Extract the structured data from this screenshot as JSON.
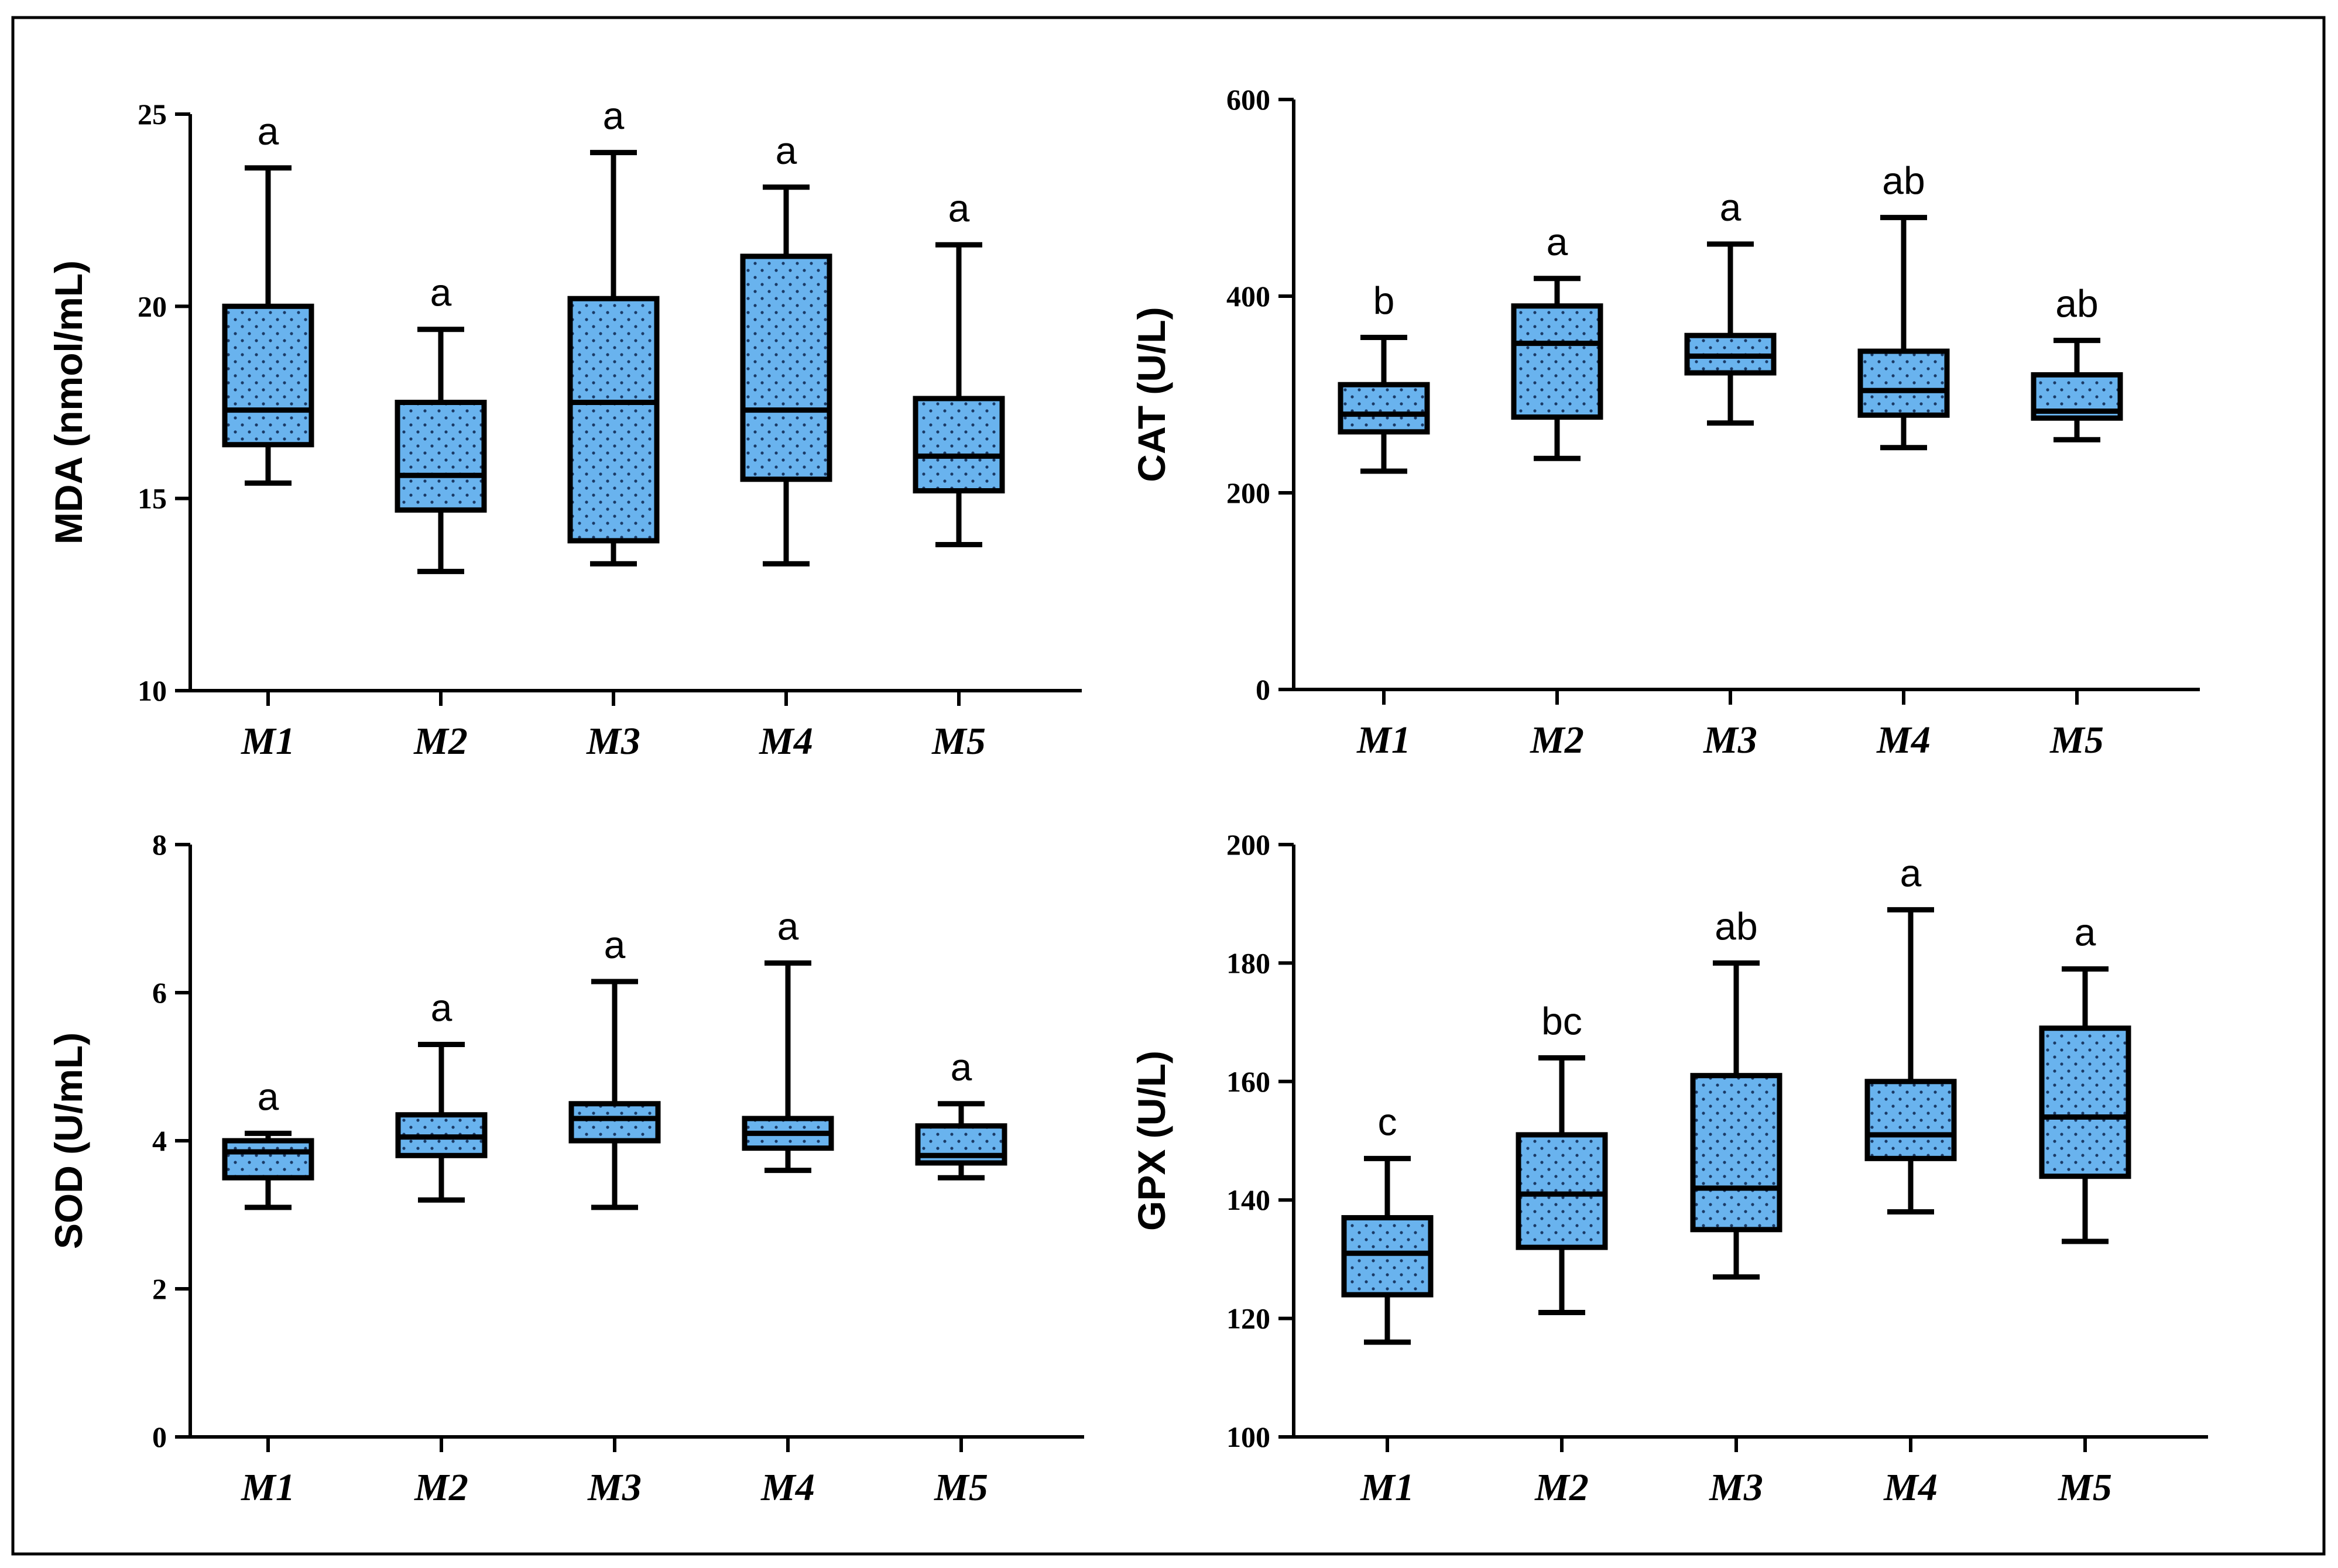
{
  "colors": {
    "box_fill": "#69b3ee",
    "stroke": "#000000",
    "dots": "#1a3a66",
    "background": "#ffffff"
  },
  "chart_data": [
    {
      "type": "box",
      "ylabel": "MDA (nmol/mL)",
      "ylim": [
        10,
        25
      ],
      "yticks": [
        10,
        15,
        20,
        25
      ],
      "categories": [
        "M1",
        "M2",
        "M3",
        "M4",
        "M5"
      ],
      "boxes": [
        {
          "min": 15.4,
          "q1": 16.4,
          "median": 17.3,
          "q3": 20.0,
          "max": 23.6,
          "sig": "a"
        },
        {
          "min": 13.1,
          "q1": 14.7,
          "median": 15.6,
          "q3": 17.5,
          "max": 19.4,
          "sig": "a"
        },
        {
          "min": 13.3,
          "q1": 13.9,
          "median": 17.5,
          "q3": 20.2,
          "max": 24.0,
          "sig": "a"
        },
        {
          "min": 13.3,
          "q1": 15.5,
          "median": 17.3,
          "q3": 21.3,
          "max": 23.1,
          "sig": "a"
        },
        {
          "min": 13.8,
          "q1": 15.2,
          "median": 16.1,
          "q3": 17.6,
          "max": 21.6,
          "sig": "a"
        }
      ]
    },
    {
      "type": "box",
      "ylabel": "CAT (U/L)",
      "ylim": [
        0,
        600
      ],
      "yticks": [
        0,
        200,
        400,
        600
      ],
      "categories": [
        "M1",
        "M2",
        "M3",
        "M4",
        "M5"
      ],
      "boxes": [
        {
          "min": 222,
          "q1": 262,
          "median": 280,
          "q3": 310,
          "max": 358,
          "sig": "b"
        },
        {
          "min": 235,
          "q1": 277,
          "median": 352,
          "q3": 390,
          "max": 418,
          "sig": "a"
        },
        {
          "min": 271,
          "q1": 322,
          "median": 339,
          "q3": 360,
          "max": 453,
          "sig": "a"
        },
        {
          "min": 246,
          "q1": 279,
          "median": 304,
          "q3": 344,
          "max": 480,
          "sig": "ab"
        },
        {
          "min": 254,
          "q1": 276,
          "median": 283,
          "q3": 320,
          "max": 355,
          "sig": "ab"
        }
      ]
    },
    {
      "type": "box",
      "ylabel": "SOD (U/mL)",
      "ylim": [
        0,
        8
      ],
      "yticks": [
        0,
        2,
        4,
        6,
        8
      ],
      "categories": [
        "M1",
        "M2",
        "M3",
        "M4",
        "M5"
      ],
      "boxes": [
        {
          "min": 3.1,
          "q1": 3.5,
          "median": 3.85,
          "q3": 4.0,
          "max": 4.1,
          "sig": "a"
        },
        {
          "min": 3.2,
          "q1": 3.8,
          "median": 4.05,
          "q3": 4.35,
          "max": 5.3,
          "sig": "a"
        },
        {
          "min": 3.1,
          "q1": 4.0,
          "median": 4.3,
          "q3": 4.5,
          "max": 6.15,
          "sig": "a"
        },
        {
          "min": 3.6,
          "q1": 3.9,
          "median": 4.1,
          "q3": 4.3,
          "max": 6.4,
          "sig": "a"
        },
        {
          "min": 3.5,
          "q1": 3.7,
          "median": 3.8,
          "q3": 4.2,
          "max": 4.5,
          "sig": "a"
        }
      ]
    },
    {
      "type": "box",
      "ylabel": "GPX (U/L)",
      "ylim": [
        100,
        200
      ],
      "yticks": [
        100,
        120,
        140,
        160,
        180,
        200
      ],
      "categories": [
        "M1",
        "M2",
        "M3",
        "M4",
        "M5"
      ],
      "boxes": [
        {
          "min": 116,
          "q1": 124,
          "median": 131,
          "q3": 137,
          "max": 147,
          "sig": "c"
        },
        {
          "min": 121,
          "q1": 132,
          "median": 141,
          "q3": 151,
          "max": 164,
          "sig": "bc"
        },
        {
          "min": 127,
          "q1": 135,
          "median": 142,
          "q3": 161,
          "max": 180,
          "sig": "ab"
        },
        {
          "min": 138,
          "q1": 147,
          "median": 151,
          "q3": 160,
          "max": 189,
          "sig": "a"
        },
        {
          "min": 133,
          "q1": 144,
          "median": 154,
          "q3": 169,
          "max": 179,
          "sig": "a"
        }
      ]
    }
  ]
}
